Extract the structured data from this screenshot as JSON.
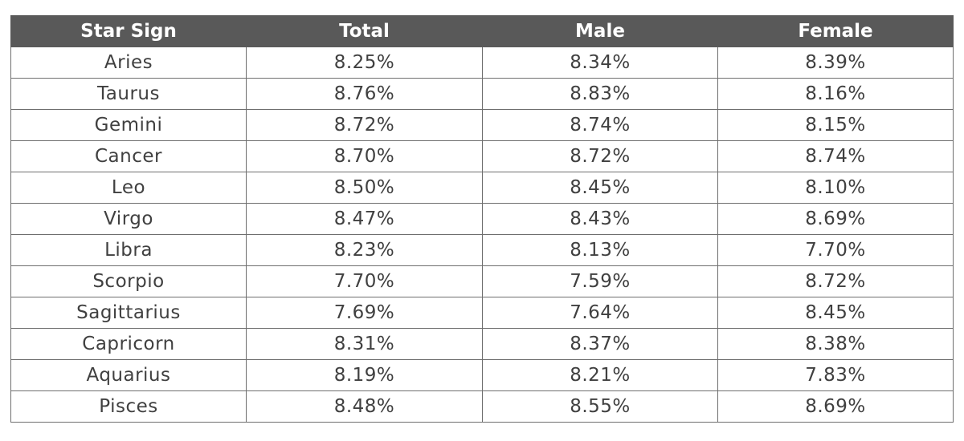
{
  "table": {
    "headers": [
      "Star Sign",
      "Total",
      "Male",
      "Female"
    ],
    "rows": [
      [
        "Aries",
        "8.25%",
        "8.34%",
        "8.39%"
      ],
      [
        "Taurus",
        "8.76%",
        "8.83%",
        "8.16%"
      ],
      [
        "Gemini",
        "8.72%",
        "8.74%",
        "8.15%"
      ],
      [
        "Cancer",
        "8.70%",
        "8.72%",
        "8.74%"
      ],
      [
        "Leo",
        "8.50%",
        "8.45%",
        "8.10%"
      ],
      [
        "Virgo",
        "8.47%",
        "8.43%",
        "8.69%"
      ],
      [
        "Libra",
        "8.23%",
        "8.13%",
        "7.70%"
      ],
      [
        "Scorpio",
        "7.70%",
        "7.59%",
        "8.72%"
      ],
      [
        "Sagittarius",
        "7.69%",
        "7.64%",
        "8.45%"
      ],
      [
        "Capricorn",
        "8.31%",
        "8.37%",
        "8.38%"
      ],
      [
        "Aquarius",
        "8.19%",
        "8.21%",
        "7.83%"
      ],
      [
        "Pisces",
        "8.48%",
        "8.55%",
        "8.69%"
      ]
    ]
  },
  "colors": {
    "header_background": "#595959",
    "header_text": "#ffffff",
    "cell_text": "#404040",
    "border": "#6e6e6e"
  }
}
